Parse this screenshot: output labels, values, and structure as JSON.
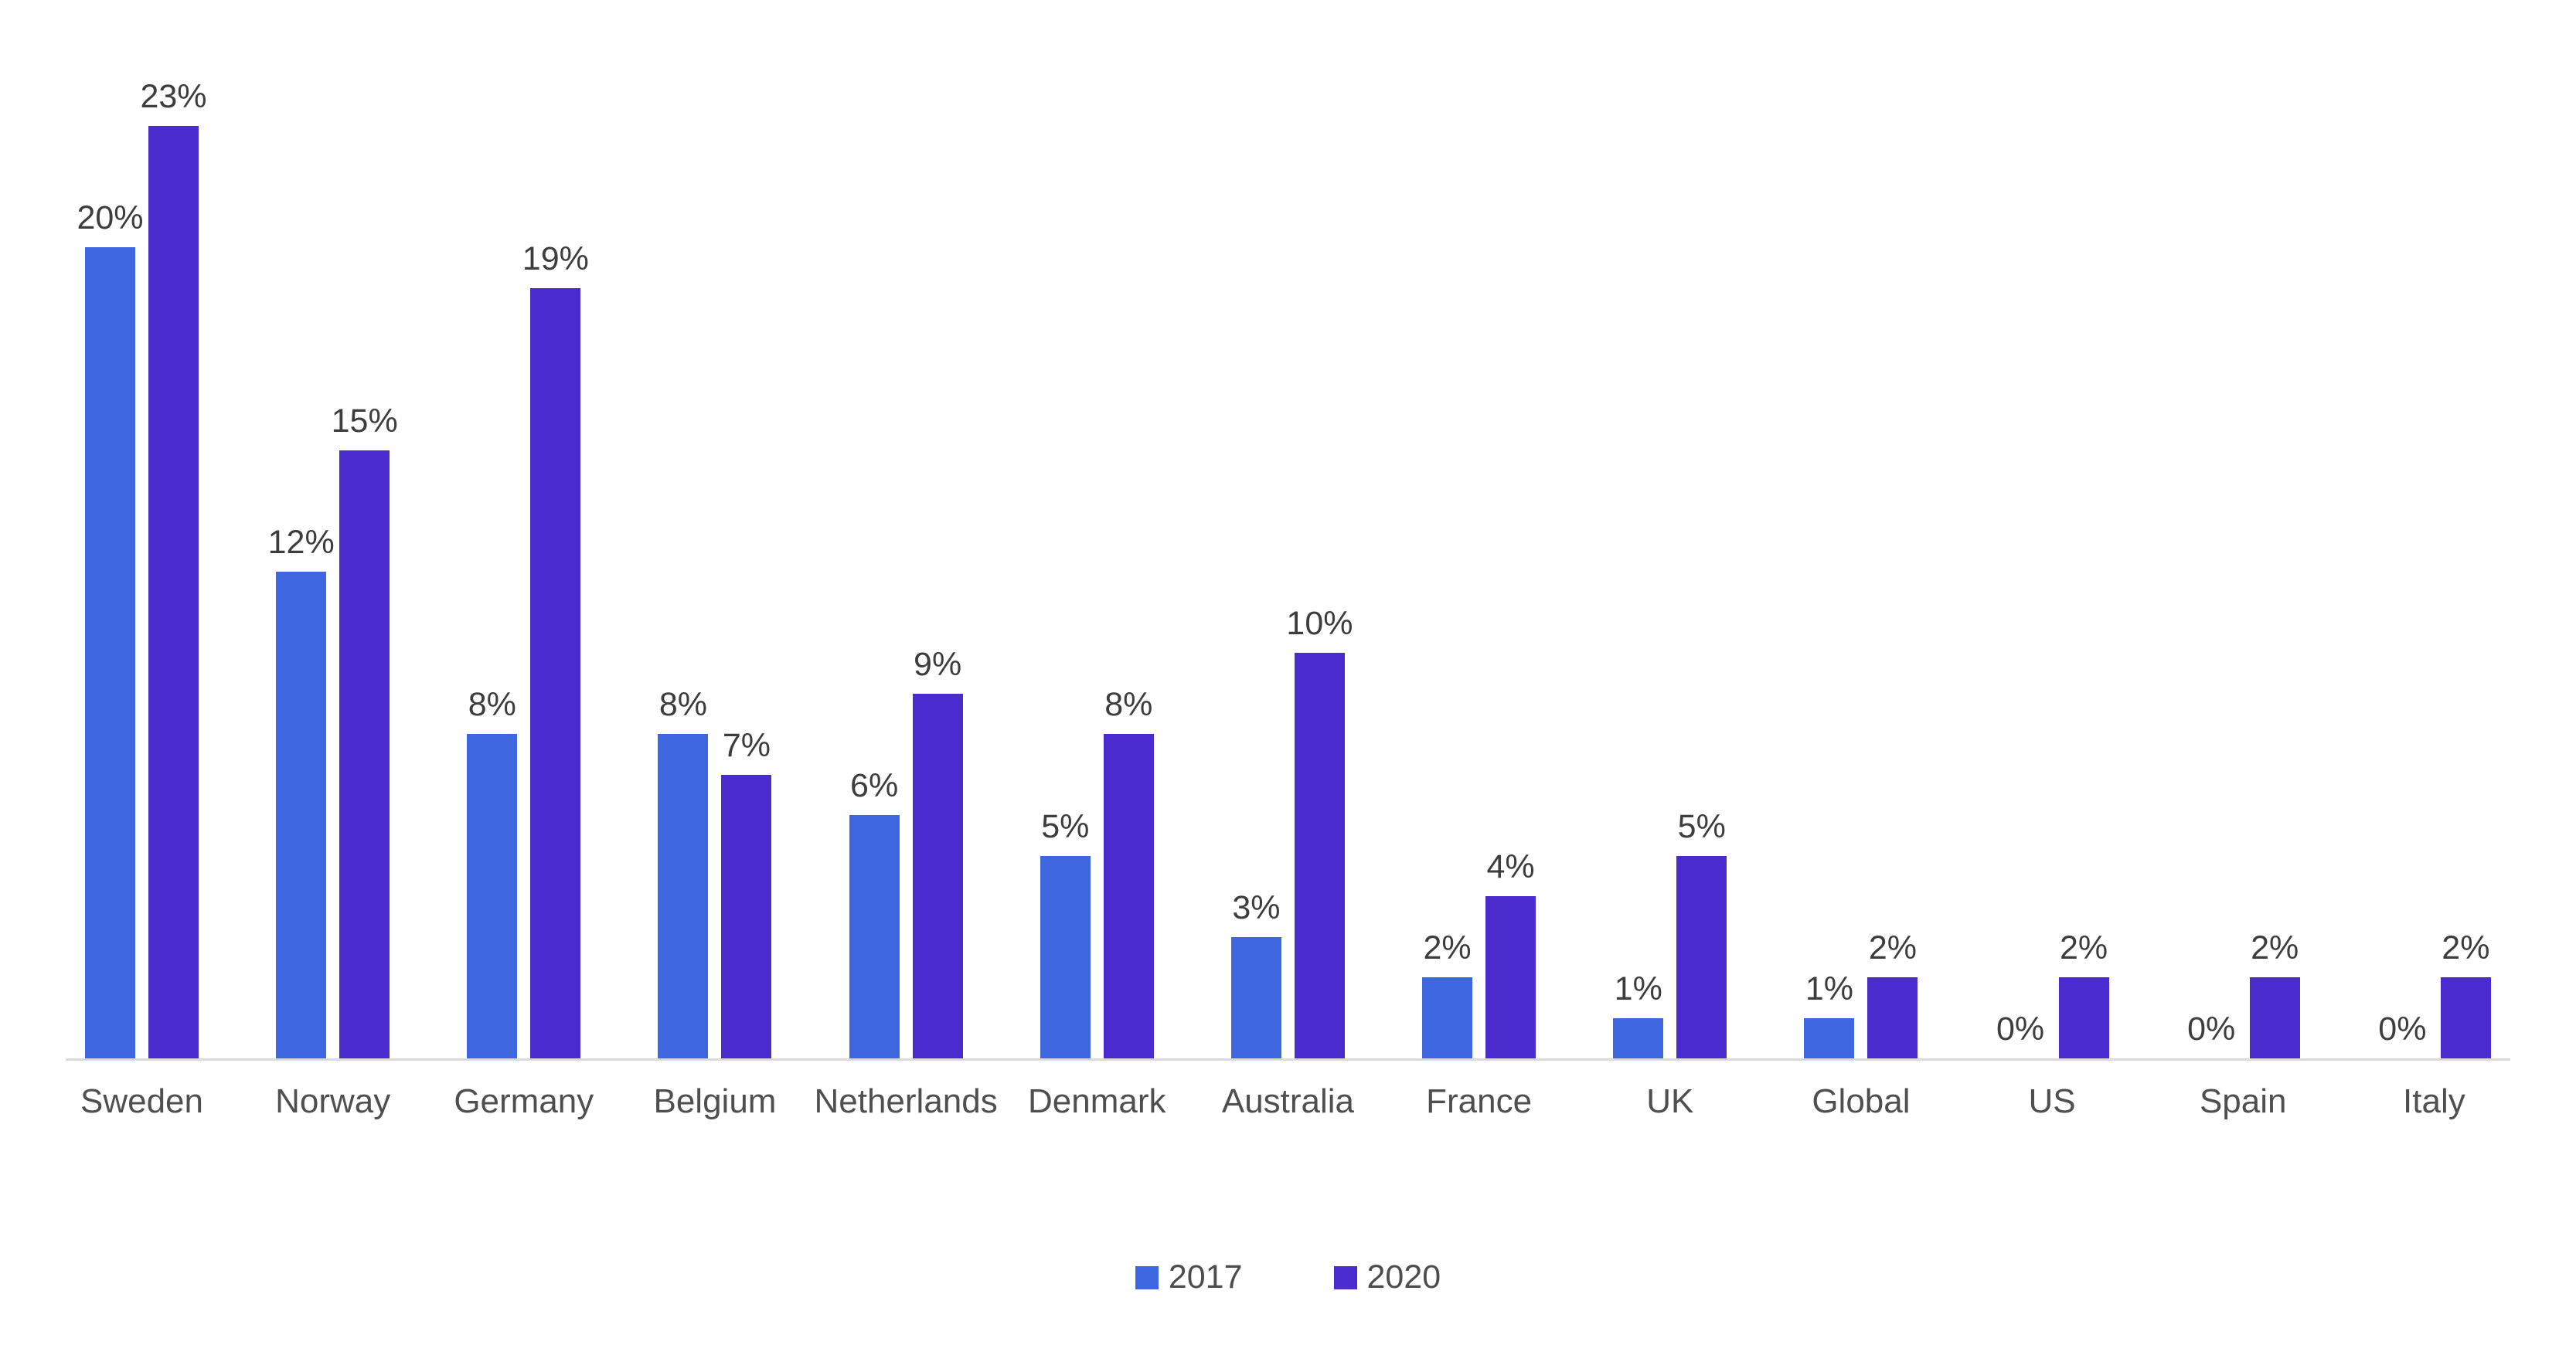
{
  "chart_data": {
    "type": "bar",
    "title": "",
    "categories": [
      "Sweden",
      "Norway",
      "Germany",
      "Belgium",
      "Netherlands",
      "Denmark",
      "Australia",
      "France",
      "UK",
      "Global",
      "US",
      "Spain",
      "Italy"
    ],
    "series": [
      {
        "name": "2017",
        "color": "#3E66DF",
        "values": [
          20,
          12,
          8,
          8,
          6,
          5,
          3,
          2,
          1,
          1,
          0,
          0,
          0
        ]
      },
      {
        "name": "2020",
        "color": "#4A2BCE",
        "values": [
          23,
          15,
          19,
          7,
          9,
          8,
          10,
          4,
          5,
          2,
          2,
          2,
          2
        ]
      }
    ],
    "value_suffix": "%",
    "xlabel": "",
    "ylabel": "",
    "ylim": [
      0,
      25
    ],
    "grid": false,
    "data_labels": true,
    "legend_position": "bottom"
  },
  "colors": {
    "background": "#FFFFFF",
    "axis_line": "#DADADA",
    "value_label": "#3D3D3D",
    "category_label": "#4F4F4F",
    "legend_label": "#4D4D4D"
  }
}
